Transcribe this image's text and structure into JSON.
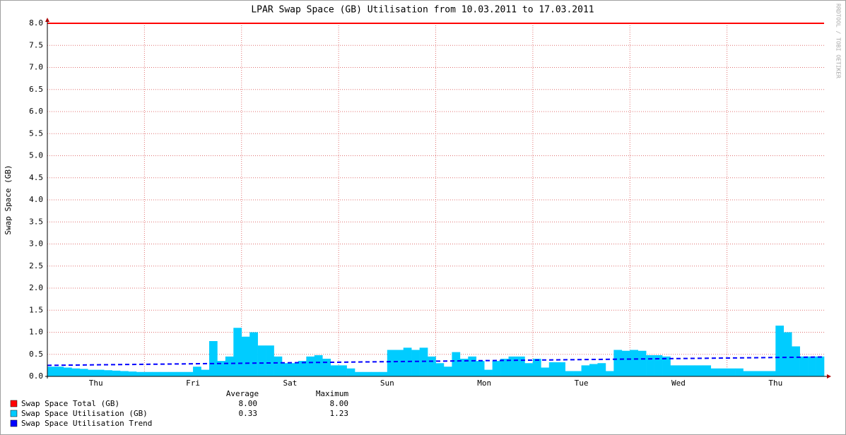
{
  "chart_data": {
    "type": "area",
    "title": "LPAR Swap Space (GB) Utilisation from 10.03.2011 to 17.03.2011",
    "y_label": "Swap Space (GB)",
    "watermark": "RRDTOOL / TOBI OETIKER",
    "stats_headers": [
      "Average",
      "Maximum"
    ],
    "categories": [
      null,
      null,
      null,
      null,
      null,
      null,
      "Thu",
      null,
      null,
      null,
      null,
      null,
      null,
      null,
      null,
      null,
      null,
      null,
      "Fri",
      null,
      null,
      null,
      null,
      null,
      null,
      null,
      null,
      null,
      null,
      null,
      "Sat",
      null,
      null,
      null,
      null,
      null,
      null,
      null,
      null,
      null,
      null,
      null,
      "Sun",
      null,
      null,
      null,
      null,
      null,
      null,
      null,
      null,
      null,
      null,
      null,
      "Mon",
      null,
      null,
      null,
      null,
      null,
      null,
      null,
      null,
      null,
      null,
      null,
      "Tue",
      null,
      null,
      null,
      null,
      null,
      null,
      null,
      null,
      null,
      null,
      null,
      "Wed",
      null,
      null,
      null,
      null,
      null,
      null,
      null,
      null,
      null,
      null,
      null,
      "Thu",
      null,
      null,
      null,
      null,
      null
    ],
    "series": [
      {
        "name": "Swap Space Total (GB)",
        "style": "line",
        "color": "#ff0000",
        "stats": [
          "8.00",
          "8.00"
        ],
        "values": [
          8,
          8,
          8,
          8,
          8,
          8,
          8,
          8,
          8,
          8,
          8,
          8,
          8,
          8,
          8,
          8,
          8,
          8,
          8,
          8,
          8,
          8,
          8,
          8,
          8,
          8,
          8,
          8,
          8,
          8,
          8,
          8,
          8,
          8,
          8,
          8,
          8,
          8,
          8,
          8,
          8,
          8,
          8,
          8,
          8,
          8,
          8,
          8,
          8,
          8,
          8,
          8,
          8,
          8,
          8,
          8,
          8,
          8,
          8,
          8,
          8,
          8,
          8,
          8,
          8,
          8,
          8,
          8,
          8,
          8,
          8,
          8,
          8,
          8,
          8,
          8,
          8,
          8,
          8,
          8,
          8,
          8,
          8,
          8,
          8,
          8,
          8,
          8,
          8,
          8,
          8,
          8,
          8,
          8,
          8,
          8
        ]
      },
      {
        "name": "Swap Space Utilisation (GB)",
        "style": "area",
        "color": "#00ccff",
        "stats": [
          "0.33",
          "1.23"
        ],
        "values": [
          0.22,
          0.22,
          0.2,
          0.18,
          0.17,
          0.15,
          0.15,
          0.14,
          0.13,
          0.12,
          0.11,
          0.1,
          0.1,
          0.1,
          0.1,
          0.1,
          0.1,
          0.1,
          0.22,
          0.15,
          0.8,
          0.35,
          0.45,
          1.1,
          0.9,
          1.0,
          0.7,
          0.7,
          0.45,
          0.3,
          0.3,
          0.35,
          0.45,
          0.48,
          0.4,
          0.25,
          0.25,
          0.18,
          0.1,
          0.1,
          0.1,
          0.1,
          0.6,
          0.6,
          0.65,
          0.6,
          0.65,
          0.45,
          0.3,
          0.22,
          0.55,
          0.4,
          0.45,
          0.35,
          0.15,
          0.35,
          0.4,
          0.45,
          0.45,
          0.3,
          0.4,
          0.2,
          0.32,
          0.32,
          0.12,
          0.12,
          0.25,
          0.28,
          0.3,
          0.12,
          0.6,
          0.58,
          0.6,
          0.58,
          0.48,
          0.48,
          0.45,
          0.25,
          0.25,
          0.25,
          0.25,
          0.25,
          0.18,
          0.18,
          0.18,
          0.18,
          0.12,
          0.12,
          0.12,
          0.12,
          1.15,
          1.0,
          0.68,
          0.45,
          0.45,
          0.45
        ]
      },
      {
        "name": "Swap Space Utilisation Trend",
        "style": "dashed",
        "color": "#0000ff",
        "values": [
          0.25,
          0.252,
          0.254,
          0.256,
          0.258,
          0.26,
          0.262,
          0.264,
          0.266,
          0.268,
          0.27,
          0.272,
          0.274,
          0.276,
          0.278,
          0.28,
          0.282,
          0.284,
          0.286,
          0.288,
          0.29,
          0.292,
          0.294,
          0.296,
          0.298,
          0.3,
          0.302,
          0.304,
          0.306,
          0.308,
          0.31,
          0.312,
          0.314,
          0.316,
          0.318,
          0.32,
          0.322,
          0.324,
          0.326,
          0.328,
          0.33,
          0.332,
          0.334,
          0.336,
          0.338,
          0.34,
          0.342,
          0.344,
          0.346,
          0.348,
          0.35,
          0.352,
          0.354,
          0.356,
          0.358,
          0.36,
          0.362,
          0.364,
          0.366,
          0.368,
          0.37,
          0.372,
          0.374,
          0.376,
          0.378,
          0.38,
          0.382,
          0.384,
          0.386,
          0.388,
          0.39,
          0.392,
          0.394,
          0.396,
          0.398,
          0.4,
          0.402,
          0.404,
          0.406,
          0.408,
          0.41,
          0.412,
          0.414,
          0.416,
          0.418,
          0.42,
          0.422,
          0.424,
          0.426,
          0.428,
          0.43,
          0.432,
          0.434,
          0.436,
          0.438,
          0.44
        ]
      }
    ],
    "ylim": [
      0,
      8
    ],
    "yticks": [
      {
        "value": 0,
        "label": "0.0"
      },
      {
        "value": 0.5,
        "label": "0.5"
      },
      {
        "value": 1,
        "label": "1.0"
      },
      {
        "value": 1.5,
        "label": "1.5"
      },
      {
        "value": 2,
        "label": "2.0"
      },
      {
        "value": 2.5,
        "label": "2.5"
      },
      {
        "value": 3,
        "label": "3.0"
      },
      {
        "value": 3.5,
        "label": "3.5"
      },
      {
        "value": 4,
        "label": "4.0"
      },
      {
        "value": 4.5,
        "label": "4.5"
      },
      {
        "value": 5,
        "label": "5.0"
      },
      {
        "value": 5.5,
        "label": "5.5"
      },
      {
        "value": 6,
        "label": "6.0"
      },
      {
        "value": 6.5,
        "label": "6.5"
      },
      {
        "value": 7,
        "label": "7.0"
      },
      {
        "value": 7.5,
        "label": "7.5"
      },
      {
        "value": 8,
        "label": "8.0"
      }
    ],
    "grid": true
  }
}
